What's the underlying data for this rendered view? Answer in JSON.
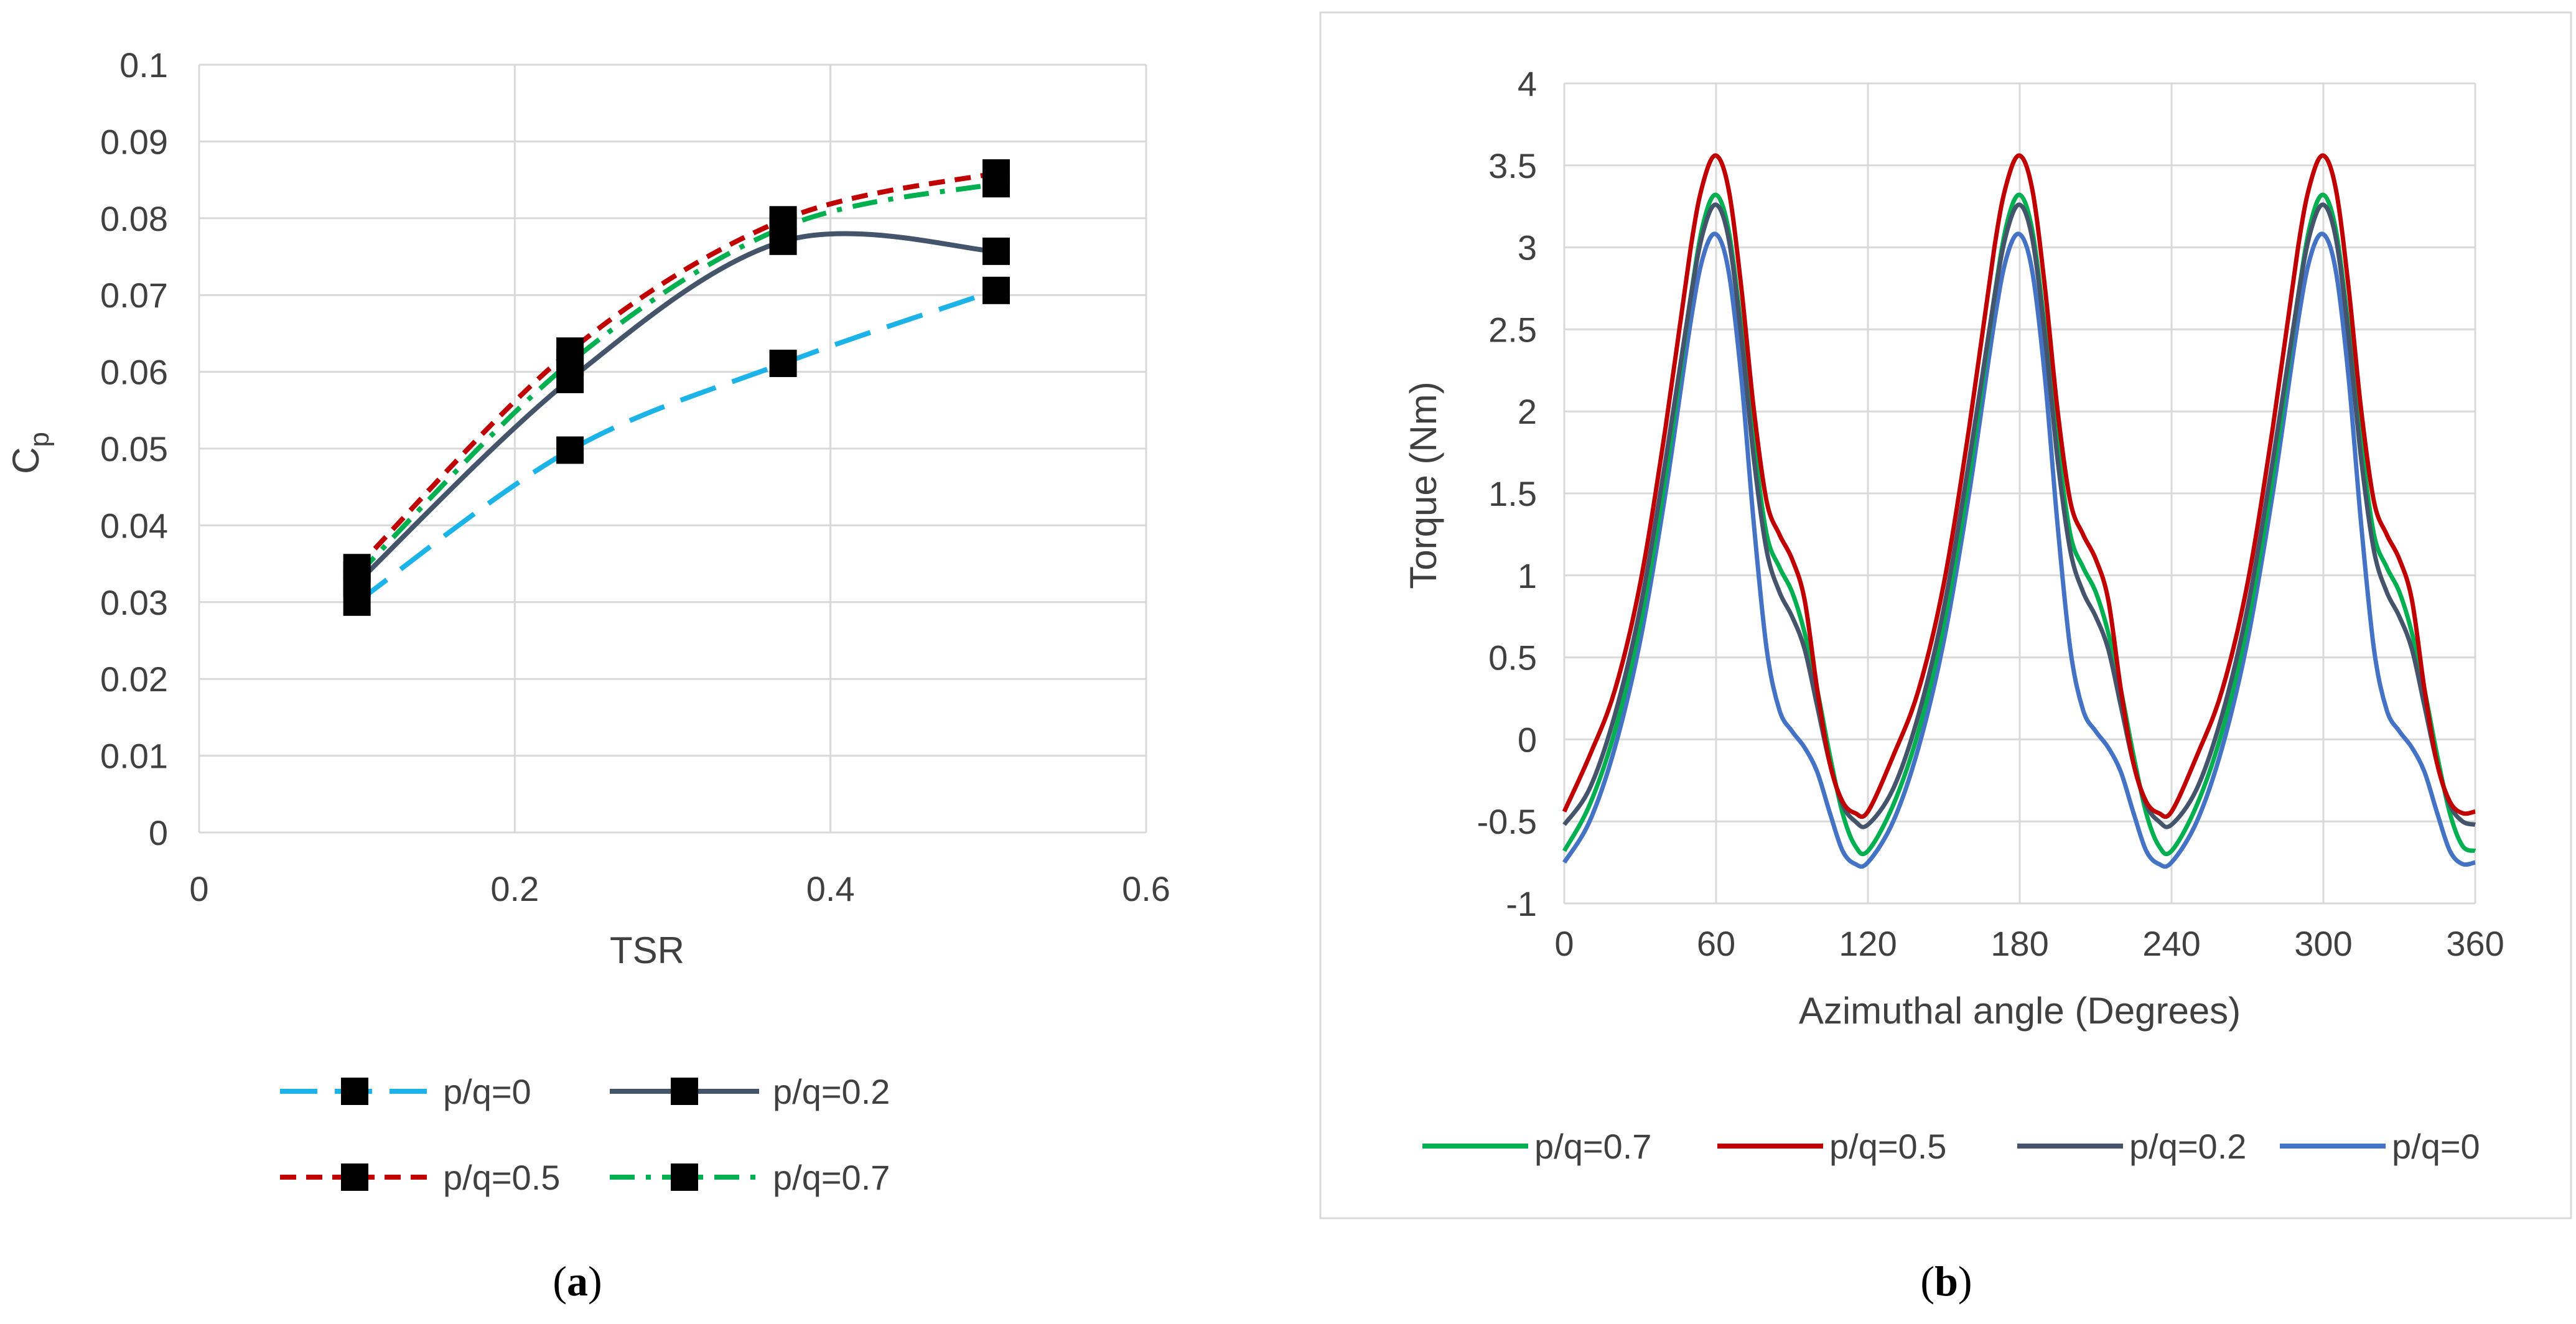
{
  "chart_data": [
    {
      "id": "a",
      "type": "line",
      "caption_open": "(",
      "caption_letter": "a",
      "caption_close": ")",
      "xlabel": "TSR",
      "ylabel": "C",
      "ylabel_sub": "p",
      "xlim": [
        0,
        0.6
      ],
      "ylim": [
        0,
        0.1
      ],
      "xticks": [
        "0",
        "0.2",
        "0.4",
        "0.6"
      ],
      "yticks": [
        "0",
        "0.01",
        "0.02",
        "0.03",
        "0.04",
        "0.05",
        "0.06",
        "0.07",
        "0.08",
        "0.09",
        "0.1"
      ],
      "grid": true,
      "legend_position": "bottom",
      "x": [
        0.1,
        0.235,
        0.37,
        0.505
      ],
      "series": [
        {
          "name": "p/q=0",
          "color": "#1CB4E8",
          "dash": "long-dash",
          "values": [
            0.03,
            0.0498,
            0.0611,
            0.0706
          ]
        },
        {
          "name": "p/q=0.2",
          "color": "#44546A",
          "dash": "solid",
          "values": [
            0.0325,
            0.059,
            0.077,
            0.0757
          ]
        },
        {
          "name": "p/q=0.5",
          "color": "#C00000",
          "dash": "dash",
          "values": [
            0.0345,
            0.0627,
            0.0798,
            0.0859
          ]
        },
        {
          "name": "p/q=0.7",
          "color": "#00B050",
          "dash": "dash-dot",
          "values": [
            0.0335,
            0.0612,
            0.0788,
            0.0845
          ]
        }
      ]
    },
    {
      "id": "b",
      "type": "line",
      "caption_open": "(",
      "caption_letter": "b",
      "caption_close": ")",
      "xlabel": "Azimuthal angle (Degrees)",
      "ylabel": "Torque (Nm)",
      "xlim": [
        0,
        360
      ],
      "ylim": [
        -1,
        4
      ],
      "xticks": [
        "0",
        "60",
        "120",
        "180",
        "240",
        "300",
        "360"
      ],
      "yticks": [
        "-1",
        "-0.5",
        "0",
        "0.5",
        "1",
        "1.5",
        "2",
        "2.5",
        "3",
        "3.5",
        "4"
      ],
      "grid": true,
      "legend_position": "bottom",
      "period_degrees": 120,
      "series": [
        {
          "name": "p/q=0.7",
          "color": "#00B050",
          "cycle_x": [
            0,
            10,
            20,
            30,
            40,
            50,
            55,
            60,
            65,
            70,
            75,
            80,
            85,
            90,
            95,
            100,
            105,
            110,
            115,
            120
          ],
          "cycle_y": [
            -0.68,
            -0.4,
            0.05,
            0.7,
            1.6,
            2.7,
            3.15,
            3.32,
            3.1,
            2.5,
            1.8,
            1.25,
            1.05,
            0.9,
            0.65,
            0.3,
            -0.1,
            -0.45,
            -0.65,
            -0.68
          ]
        },
        {
          "name": "p/q=0.5",
          "color": "#C00000",
          "cycle_x": [
            0,
            10,
            20,
            30,
            40,
            50,
            55,
            60,
            65,
            70,
            75,
            80,
            85,
            90,
            95,
            100,
            105,
            110,
            115,
            120
          ],
          "cycle_y": [
            -0.44,
            -0.1,
            0.3,
            0.95,
            1.9,
            3.0,
            3.4,
            3.56,
            3.35,
            2.75,
            2.0,
            1.45,
            1.25,
            1.1,
            0.85,
            0.3,
            -0.15,
            -0.38,
            -0.45,
            -0.44
          ]
        },
        {
          "name": "p/q=0.2",
          "color": "#44546A",
          "cycle_x": [
            0,
            10,
            20,
            30,
            40,
            50,
            55,
            60,
            65,
            70,
            75,
            80,
            85,
            90,
            95,
            100,
            105,
            110,
            115,
            120
          ],
          "cycle_y": [
            -0.52,
            -0.3,
            0.15,
            0.8,
            1.7,
            2.7,
            3.1,
            3.26,
            3.05,
            2.45,
            1.7,
            1.15,
            0.9,
            0.75,
            0.55,
            0.2,
            -0.15,
            -0.4,
            -0.5,
            -0.52
          ]
        },
        {
          "name": "p/q=0",
          "color": "#4472C4",
          "cycle_x": [
            0,
            10,
            20,
            30,
            40,
            50,
            55,
            60,
            65,
            70,
            75,
            80,
            85,
            90,
            95,
            100,
            105,
            110,
            115,
            120
          ],
          "cycle_y": [
            -0.75,
            -0.5,
            -0.05,
            0.6,
            1.5,
            2.55,
            2.95,
            3.08,
            2.85,
            2.2,
            1.3,
            0.55,
            0.18,
            0.05,
            -0.05,
            -0.2,
            -0.45,
            -0.68,
            -0.76,
            -0.75
          ]
        }
      ]
    }
  ]
}
